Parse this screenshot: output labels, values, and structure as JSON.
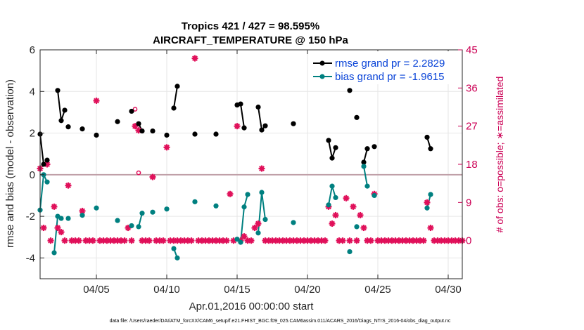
{
  "chart_data": {
    "type": "line",
    "title": "Tropics 421 / 427 = 98.595%",
    "subtitle": "AIRCRAFT_TEMPERATURE @ 150 hPa",
    "xlabel": "Apr.01,2016 00:00:00 start",
    "ylabel": "rmse and bias (model - observation)",
    "ylabel_right": "# of obs: o=possible; ∗=assimilated",
    "xlim": [
      1.0,
      31.0
    ],
    "ylim": [
      -5,
      6
    ],
    "ylim_right": [
      -9,
      45
    ],
    "x_ticks": [
      5,
      10,
      15,
      20,
      25,
      30
    ],
    "x_tick_labels": [
      "04/05",
      "04/10",
      "04/15",
      "04/20",
      "04/25",
      "04/30"
    ],
    "y_ticks": [
      -4,
      -2,
      0,
      2,
      4,
      6
    ],
    "y_tick_labels": [
      "-4",
      "-2",
      "0",
      "2",
      "4",
      "6"
    ],
    "y_right_ticks": [
      0,
      9,
      18,
      27,
      36,
      45
    ],
    "y_right_tick_labels": [
      "0",
      "9",
      "18",
      "27",
      "36",
      "45"
    ],
    "zero_line": 0,
    "grid": true,
    "legend_position": "top-right",
    "colors": {
      "rmse": "#000000",
      "bias": "#008080",
      "obs": "#e0105a",
      "zero_line": "#c0a0a8",
      "axis": "#262626",
      "legend_text": "#0a44d8"
    },
    "series": [
      {
        "name": "rmse grand pr = 2.2829",
        "key": "rmse",
        "segments": [
          [
            [
              1.0,
              1.95
            ],
            [
              1.25,
              0.5
            ],
            [
              1.5,
              0.7
            ]
          ],
          [
            [
              2.25,
              4.05
            ],
            [
              2.5,
              2.6
            ],
            [
              2.75,
              3.1
            ]
          ],
          [
            [
              3.0,
              2.3
            ]
          ],
          [
            [
              4.0,
              2.2
            ]
          ],
          [
            [
              5.0,
              1.9
            ]
          ],
          [
            [
              6.5,
              2.55
            ]
          ],
          [
            [
              7.5,
              3.05
            ]
          ],
          [
            [
              8.0,
              2.45
            ],
            [
              8.25,
              2.1
            ]
          ],
          [
            [
              9.0,
              2.1
            ]
          ],
          [
            [
              10.0,
              1.9
            ]
          ],
          [
            [
              10.5,
              3.2
            ],
            [
              10.75,
              4.25
            ]
          ],
          [
            [
              12.0,
              1.95
            ]
          ],
          [
            [
              13.5,
              1.95
            ]
          ],
          [
            [
              15.0,
              3.35
            ],
            [
              15.25,
              3.4
            ],
            [
              15.5,
              2.25
            ]
          ],
          [
            [
              16.5,
              3.25
            ],
            [
              16.75,
              2.15
            ],
            [
              17.0,
              2.35
            ]
          ],
          [
            [
              19.0,
              2.45
            ]
          ],
          [
            [
              21.5,
              1.65
            ],
            [
              21.75,
              0.8
            ],
            [
              22.0,
              1.3
            ]
          ],
          [
            [
              23.0,
              4.05
            ]
          ],
          [
            [
              23.5,
              2.75
            ]
          ],
          [
            [
              24.0,
              0.6
            ],
            [
              24.25,
              1.25
            ]
          ],
          [
            [
              24.75,
              1.35
            ]
          ],
          [
            [
              28.5,
              1.8
            ],
            [
              28.75,
              1.25
            ]
          ]
        ]
      },
      {
        "name": "bias grand pr = -1.9615",
        "key": "bias",
        "segments": [
          [
            [
              1.0,
              -1.7
            ],
            [
              1.25,
              0.0
            ],
            [
              1.5,
              -0.35
            ]
          ],
          [
            [
              2.0,
              -3.75
            ],
            [
              2.25,
              -2.0
            ],
            [
              2.5,
              -2.1
            ]
          ],
          [
            [
              3.0,
              -2.1
            ]
          ],
          [
            [
              4.0,
              -1.95
            ]
          ],
          [
            [
              5.0,
              -1.6
            ]
          ],
          [
            [
              6.5,
              -2.2
            ]
          ],
          [
            [
              7.5,
              -2.45
            ]
          ],
          [
            [
              8.0,
              -2.5
            ],
            [
              8.25,
              -1.85
            ]
          ],
          [
            [
              9.0,
              -1.8
            ]
          ],
          [
            [
              10.0,
              -1.65
            ]
          ],
          [
            [
              10.5,
              -3.55
            ],
            [
              10.75,
              -4.0
            ]
          ],
          [
            [
              12.0,
              -1.3
            ]
          ],
          [
            [
              13.5,
              -1.5
            ]
          ],
          [
            [
              15.0,
              -3.1
            ],
            [
              15.25,
              -3.25
            ],
            [
              15.5,
              -1.55
            ],
            [
              15.75,
              -0.95
            ]
          ],
          [
            [
              16.5,
              -2.8
            ],
            [
              16.75,
              -0.85
            ],
            [
              17.0,
              -2.15
            ]
          ],
          [
            [
              19.0,
              -2.3
            ]
          ],
          [
            [
              21.5,
              -1.45
            ],
            [
              21.75,
              -0.55
            ],
            [
              22.0,
              -1.1
            ]
          ],
          [
            [
              23.0,
              -3.7
            ]
          ],
          [
            [
              23.5,
              -2.5
            ]
          ],
          [
            [
              24.0,
              0.4
            ],
            [
              24.25,
              -0.55
            ]
          ],
          [
            [
              24.75,
              -1.0
            ]
          ],
          [
            [
              28.5,
              -1.6
            ],
            [
              28.75,
              -0.95
            ]
          ]
        ]
      }
    ],
    "obs_assimilated": [
      [
        1.0,
        17
      ],
      [
        1.25,
        3
      ],
      [
        1.5,
        18
      ],
      [
        1.75,
        0
      ],
      [
        2.0,
        8
      ],
      [
        2.25,
        3
      ],
      [
        2.5,
        2
      ],
      [
        2.75,
        0
      ],
      [
        3.0,
        13
      ],
      [
        3.25,
        0
      ],
      [
        3.5,
        0
      ],
      [
        3.75,
        0
      ],
      [
        4.0,
        7
      ],
      [
        4.25,
        0
      ],
      [
        4.5,
        0
      ],
      [
        4.75,
        0
      ],
      [
        5.0,
        33
      ],
      [
        5.25,
        0
      ],
      [
        5.5,
        0
      ],
      [
        5.75,
        0
      ],
      [
        6.0,
        0
      ],
      [
        6.25,
        0
      ],
      [
        6.5,
        0
      ],
      [
        6.75,
        0
      ],
      [
        7.0,
        0
      ],
      [
        7.25,
        3
      ],
      [
        7.5,
        0
      ],
      [
        7.75,
        27
      ],
      [
        8.0,
        26
      ],
      [
        8.25,
        0
      ],
      [
        8.5,
        0
      ],
      [
        8.75,
        0
      ],
      [
        9.0,
        15
      ],
      [
        9.25,
        0
      ],
      [
        9.5,
        0
      ],
      [
        9.75,
        0
      ],
      [
        10.0,
        22
      ],
      [
        10.25,
        0
      ],
      [
        10.5,
        0
      ],
      [
        10.75,
        0
      ],
      [
        11.0,
        0
      ],
      [
        11.25,
        0
      ],
      [
        11.5,
        0
      ],
      [
        11.75,
        0
      ],
      [
        12.0,
        43
      ],
      [
        12.25,
        0
      ],
      [
        12.5,
        0
      ],
      [
        12.75,
        0
      ],
      [
        13.0,
        0
      ],
      [
        13.25,
        0
      ],
      [
        13.5,
        0
      ],
      [
        13.75,
        0
      ],
      [
        14.0,
        0
      ],
      [
        14.25,
        0
      ],
      [
        14.5,
        11
      ],
      [
        14.75,
        0
      ],
      [
        15.0,
        27
      ],
      [
        15.25,
        0
      ],
      [
        15.5,
        1
      ],
      [
        15.75,
        0
      ],
      [
        16.0,
        0
      ],
      [
        16.25,
        3
      ],
      [
        16.5,
        4
      ],
      [
        16.75,
        17
      ],
      [
        17.0,
        0
      ],
      [
        17.25,
        0
      ],
      [
        17.5,
        0
      ],
      [
        17.75,
        0
      ],
      [
        18.0,
        0
      ],
      [
        18.25,
        0
      ],
      [
        18.5,
        0
      ],
      [
        18.75,
        0
      ],
      [
        19.0,
        0
      ],
      [
        19.25,
        0
      ],
      [
        19.5,
        0
      ],
      [
        19.75,
        0
      ],
      [
        20.0,
        0
      ],
      [
        20.25,
        0
      ],
      [
        20.5,
        0
      ],
      [
        20.75,
        0
      ],
      [
        21.0,
        0
      ],
      [
        21.25,
        0
      ],
      [
        21.5,
        8
      ],
      [
        21.75,
        4
      ],
      [
        22.0,
        6
      ],
      [
        22.25,
        0
      ],
      [
        22.5,
        0
      ],
      [
        22.75,
        10
      ],
      [
        23.0,
        0
      ],
      [
        23.25,
        8
      ],
      [
        23.5,
        0
      ],
      [
        23.75,
        6
      ],
      [
        24.0,
        3
      ],
      [
        24.25,
        0
      ],
      [
        24.5,
        0
      ],
      [
        24.75,
        11
      ],
      [
        25.0,
        0
      ],
      [
        25.25,
        0
      ],
      [
        25.5,
        0
      ],
      [
        25.75,
        0
      ],
      [
        26.0,
        0
      ],
      [
        26.25,
        0
      ],
      [
        26.5,
        0
      ],
      [
        26.75,
        0
      ],
      [
        27.0,
        0
      ],
      [
        27.25,
        0
      ],
      [
        27.5,
        0
      ],
      [
        27.75,
        0
      ],
      [
        28.0,
        0
      ],
      [
        28.25,
        0
      ],
      [
        28.5,
        9
      ],
      [
        28.75,
        3
      ],
      [
        29.0,
        0
      ],
      [
        29.25,
        0
      ],
      [
        29.5,
        0
      ],
      [
        29.75,
        0
      ],
      [
        30.0,
        0
      ],
      [
        30.25,
        0
      ],
      [
        30.5,
        0
      ],
      [
        30.75,
        0
      ],
      [
        31.0,
        0
      ]
    ],
    "obs_possible": [
      [
        7.75,
        31
      ],
      [
        8.0,
        16
      ]
    ],
    "footer": "data file: /Users/raeder/DAI/ATM_forcXX/CAM6_setup/f.e21.FHIST_BGC.f09_025.CAM6assim.011/ACARS_2016/Diags_NTrS_2016-04/obs_diag_output.nc"
  }
}
